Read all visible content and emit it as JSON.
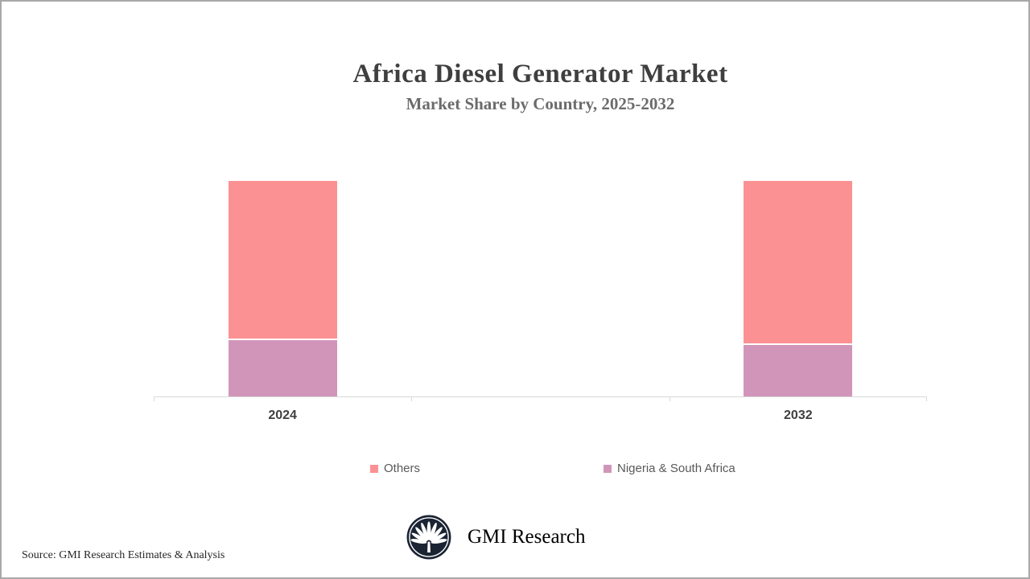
{
  "header": {
    "title": "Africa Diesel Generator Market",
    "subtitle": "Market Share by Country, 2025-2032"
  },
  "chart_data": {
    "type": "bar",
    "variant": "stacked-100-percent",
    "title": "Africa Diesel Generator Market",
    "subtitle": "Market Share by Country, 2025-2032",
    "categories": [
      "2024",
      "2032"
    ],
    "series": [
      {
        "name": "Nigeria & South Africa",
        "color": "#D295BA",
        "values": [
          26,
          24
        ],
        "stack_position": "bottom"
      },
      {
        "name": "Others",
        "color": "#FB9193",
        "values": [
          74,
          76
        ],
        "stack_position": "top"
      }
    ],
    "xlabel": "",
    "ylabel": "",
    "ylim": [
      0,
      100
    ],
    "grid": false,
    "y_axis_visible": false,
    "x_axis_color": "#d9d9d9",
    "legend_position": "bottom",
    "category_slots": 3,
    "occupied_slots": [
      0,
      2
    ],
    "segment_gap_color": "#ffffff"
  },
  "legend": {
    "items": [
      {
        "label": "Others",
        "color": "#FB9193"
      },
      {
        "label": "Nigeria & South Africa",
        "color": "#D295BA"
      }
    ]
  },
  "branding": {
    "name": "GMI Research",
    "logo_icon": "palm-fan-icon",
    "logo_background": "#1b2433",
    "logo_foreground": "#ffffff"
  },
  "footer": {
    "source": "Source: GMI Research Estimates & Analysis"
  },
  "frame": {
    "border_color": "#a8a8a8",
    "background": "#ffffff"
  }
}
